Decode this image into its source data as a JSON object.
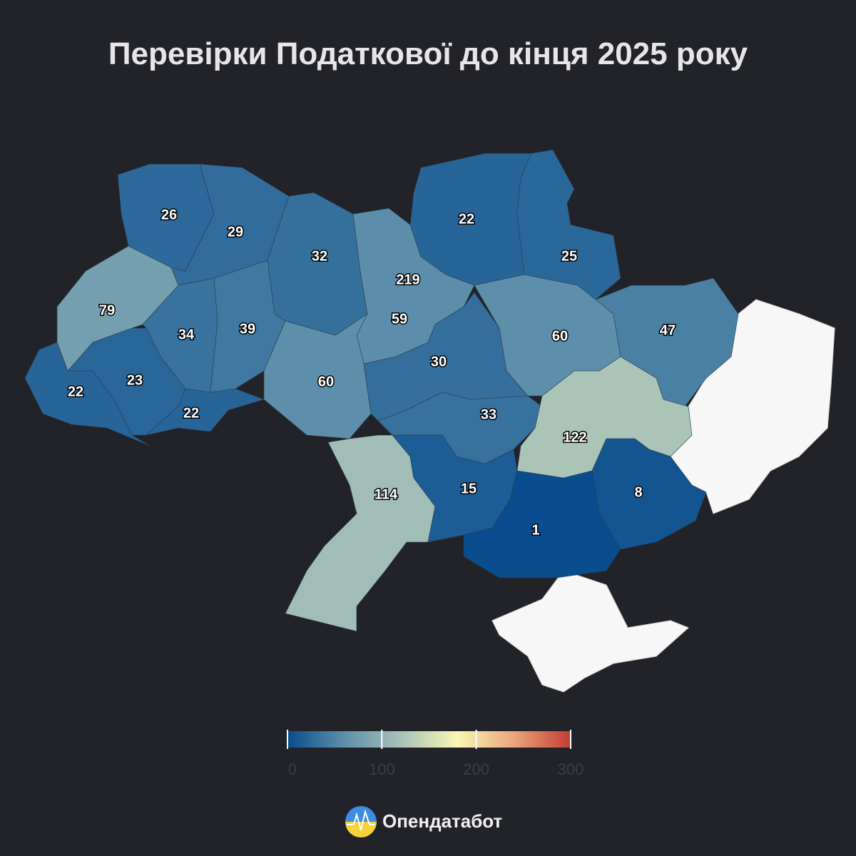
{
  "map_data": {
    "type": "choropleth",
    "title": "Перевірки Податкової до кінця 2025 року",
    "values": [
      26,
      29,
      32,
      219,
      59,
      22,
      25,
      79,
      34,
      39,
      60,
      30,
      60,
      47,
      22,
      23,
      22,
      33,
      122,
      114,
      15,
      8,
      1
    ],
    "colorscale": {
      "range": [
        0,
        300
      ],
      "ticks": [
        0,
        100,
        200,
        300
      ],
      "colors": [
        "#084c8d",
        "#5d8fab",
        "#a7c2b8",
        "#fbf5b5",
        "#eaa57c",
        "#c43c35"
      ]
    },
    "brand": "Опендатабот"
  }
}
